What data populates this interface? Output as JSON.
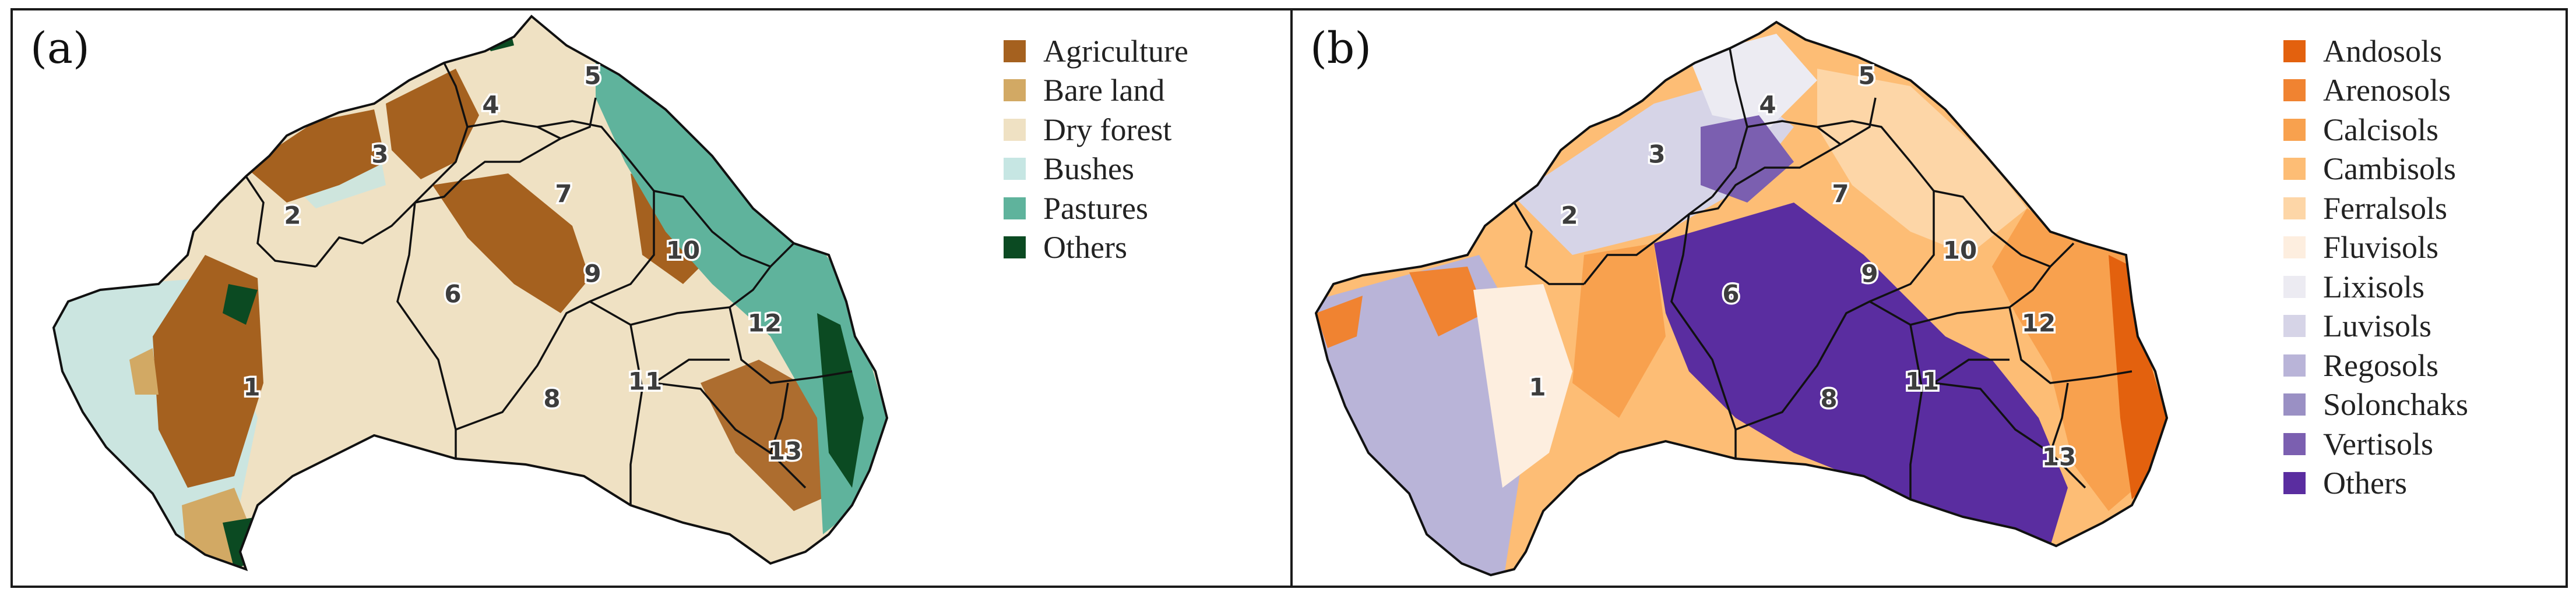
{
  "panel_a": {
    "label": "(a)",
    "legend": [
      {
        "label": "Agriculture",
        "color": "#a5611f"
      },
      {
        "label": "Bare land",
        "color": "#d2a964"
      },
      {
        "label": "Dry forest",
        "color": "#efe1c3"
      },
      {
        "label": "Bushes",
        "color": "#c6e6e3"
      },
      {
        "label": "Pastures",
        "color": "#5fb39c"
      },
      {
        "label": "Others",
        "color": "#0b4a22"
      }
    ]
  },
  "panel_b": {
    "label": "(b)",
    "legend": [
      {
        "label": "Andosols",
        "color": "#e3610e"
      },
      {
        "label": "Arenosols",
        "color": "#f08331"
      },
      {
        "label": "Calcisols",
        "color": "#f8a14e"
      },
      {
        "label": "Cambisols",
        "color": "#fdbd75"
      },
      {
        "label": "Ferralsols",
        "color": "#fdd6a7"
      },
      {
        "label": "Fluvisols",
        "color": "#fdeedf"
      },
      {
        "label": "Lixisols",
        "color": "#ecebf2"
      },
      {
        "label": "Luvisols",
        "color": "#d6d4e7"
      },
      {
        "label": "Regosols",
        "color": "#b9b4d8"
      },
      {
        "label": "Solonchaks",
        "color": "#9a90c4"
      },
      {
        "label": "Vertisols",
        "color": "#7b5fb0"
      },
      {
        "label": "Others",
        "color": "#5a2da0"
      }
    ]
  },
  "regions": [
    "1",
    "2",
    "3",
    "4",
    "5",
    "6",
    "7",
    "8",
    "9",
    "10",
    "11",
    "12",
    "13"
  ]
}
